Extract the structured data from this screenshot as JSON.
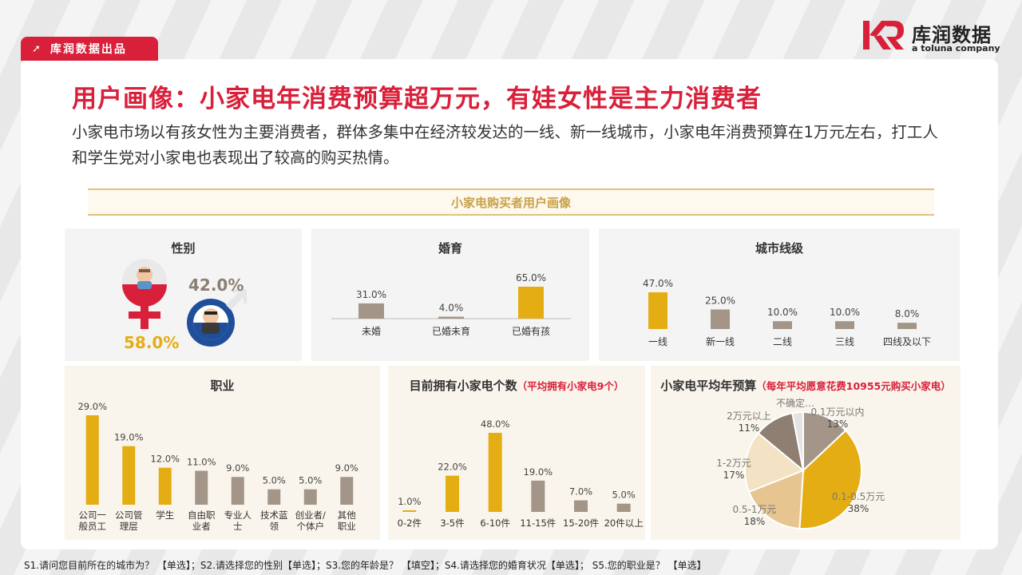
{
  "header": {
    "brand_tag": "库润数据出品",
    "logo_cn": "库润数据",
    "logo_en": "a toluna company",
    "title": "用户画像：小家电年消费预算超万元，有娃女性是主力消费者",
    "subtitle": "小家电市场以有孩女性为主要消费者，群体多集中在经济较发达的一线、新一线城市，小家电年消费预算在1万元左右，打工人和学生党对小家电也表现出了较高的购买热情。",
    "section": "小家电购买者用户画像"
  },
  "colors": {
    "accent": "#d9203a",
    "gold": "#e5ad14",
    "taupe": "#a39588",
    "cream": "#f3e2c4",
    "wheat": "#e6c590",
    "gray": "#d9d9d9",
    "dark_taupe": "#8e7f72"
  },
  "gender": {
    "title": "性别",
    "female_pct": "58.0%",
    "male_pct": "42.0%"
  },
  "footnote": "S1.请问您目前所在的城市为？ 【单选】；S2.请选择您的性别【单选】；S3.您的年龄是？ 【填空】；S4.请选择您的婚育状况【单选】； S5.您的职业是？ 【单选】",
  "chart_data": [
    {
      "id": "marriage",
      "type": "bar",
      "title": "婚育",
      "categories": [
        "未婚",
        "已婚未育",
        "已婚有孩"
      ],
      "values": [
        31.0,
        4.0,
        65.0
      ],
      "labels": [
        "31.0%",
        "4.0%",
        "65.0%"
      ],
      "highlight": [
        false,
        false,
        true
      ]
    },
    {
      "id": "city",
      "type": "bar",
      "title": "城市线级",
      "categories": [
        "一线",
        "新一线",
        "二线",
        "三线",
        "四线及以下"
      ],
      "values": [
        47.0,
        25.0,
        10.0,
        10.0,
        8.0
      ],
      "labels": [
        "47.0%",
        "25.0%",
        "10.0%",
        "10.0%",
        "8.0%"
      ],
      "highlight": [
        true,
        false,
        false,
        false,
        false
      ]
    },
    {
      "id": "occupation",
      "type": "bar",
      "title": "职业",
      "categories": [
        [
          "公司一",
          "般员工"
        ],
        [
          "公司管",
          "理层"
        ],
        [
          "学生"
        ],
        [
          "自由职",
          "业者"
        ],
        [
          "专业人",
          "士"
        ],
        [
          "技术蓝",
          "领"
        ],
        [
          "创业者/",
          "个体户"
        ],
        [
          "其他",
          "职业"
        ]
      ],
      "values": [
        29.0,
        19.0,
        12.0,
        11.0,
        9.0,
        5.0,
        5.0,
        9.0
      ],
      "labels": [
        "29.0%",
        "19.0%",
        "12.0%",
        "11.0%",
        "9.0%",
        "5.0%",
        "5.0%",
        "9.0%"
      ],
      "highlight": [
        true,
        true,
        true,
        false,
        false,
        false,
        false,
        false
      ]
    },
    {
      "id": "owned",
      "type": "bar",
      "title": "目前拥有小家电个数",
      "note": "（平均拥有小家电9个）",
      "categories": [
        "0-2件",
        "3-5件",
        "6-10件",
        "11-15件",
        "15-20件",
        "20件以上"
      ],
      "values": [
        1.0,
        22.0,
        48.0,
        19.0,
        7.0,
        5.0
      ],
      "labels": [
        "1.0%",
        "22.0%",
        "48.0%",
        "19.0%",
        "7.0%",
        "5.0%"
      ],
      "highlight": [
        true,
        true,
        true,
        false,
        false,
        false
      ]
    },
    {
      "id": "budget",
      "type": "pie",
      "title": "小家电平均年预算",
      "note": "（每年平均愿意花费10955元购买小家电）",
      "slices": [
        {
          "label": "0.1万元以内",
          "pct_label": "13%",
          "value": 13,
          "color": "#a39588"
        },
        {
          "label": "0.1-0.5万元",
          "pct_label": "38%",
          "value": 38,
          "color": "#e5ad14"
        },
        {
          "label": "0.5-1万元",
          "pct_label": "18%",
          "value": 18,
          "color": "#e6c590"
        },
        {
          "label": "1-2万元",
          "pct_label": "17%",
          "value": 17,
          "color": "#f3e2c4"
        },
        {
          "label": "2万元以上",
          "pct_label": "11%",
          "value": 11,
          "color": "#8e7f72"
        },
        {
          "label": "不确定…",
          "pct_label": "",
          "value": 3,
          "color": "#e3e3e3"
        }
      ]
    }
  ]
}
